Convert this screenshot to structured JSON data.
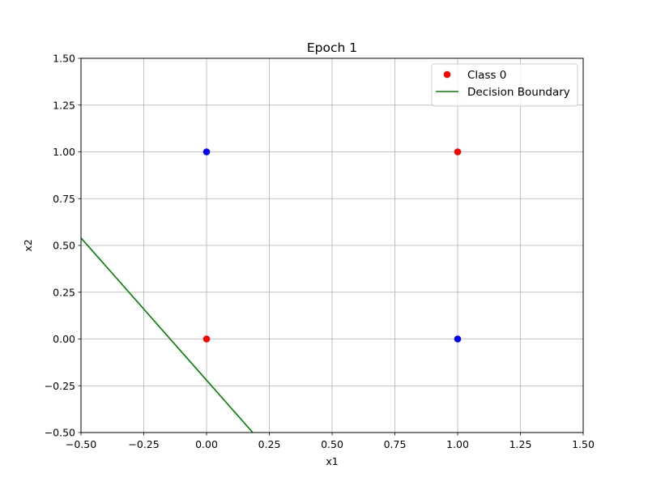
{
  "chart_data": {
    "type": "scatter",
    "title": "Epoch 1",
    "xlabel": "x1",
    "ylabel": "x2",
    "xlim": [
      -0.5,
      1.5
    ],
    "ylim": [
      -0.5,
      1.5
    ],
    "xticks": [
      -0.5,
      -0.25,
      0.0,
      0.25,
      0.5,
      0.75,
      1.0,
      1.25,
      1.5
    ],
    "yticks": [
      -0.5,
      -0.25,
      0.0,
      0.25,
      0.5,
      0.75,
      1.0,
      1.25,
      1.5
    ],
    "xtick_labels": [
      "−0.50",
      "−0.25",
      "0.00",
      "0.25",
      "0.50",
      "0.75",
      "1.00",
      "1.25",
      "1.50"
    ],
    "ytick_labels": [
      "−0.50",
      "−0.25",
      "0.00",
      "0.25",
      "0.50",
      "0.75",
      "1.00",
      "1.25",
      "1.50"
    ],
    "grid": true,
    "legend_position": "top-right",
    "series": [
      {
        "name": "Class 0",
        "kind": "scatter",
        "color": "#ff0000",
        "in_legend": true,
        "points": [
          [
            0,
            0
          ],
          [
            1,
            1
          ]
        ]
      },
      {
        "kind": "scatter",
        "color": "#0000ff",
        "in_legend": false,
        "points": [
          [
            0,
            1
          ],
          [
            1,
            0
          ]
        ]
      },
      {
        "name": "Decision Boundary",
        "kind": "line",
        "color": "#008000",
        "in_legend": true,
        "points": [
          [
            -0.5,
            0.54
          ],
          [
            0.184,
            -0.5
          ]
        ]
      }
    ]
  }
}
